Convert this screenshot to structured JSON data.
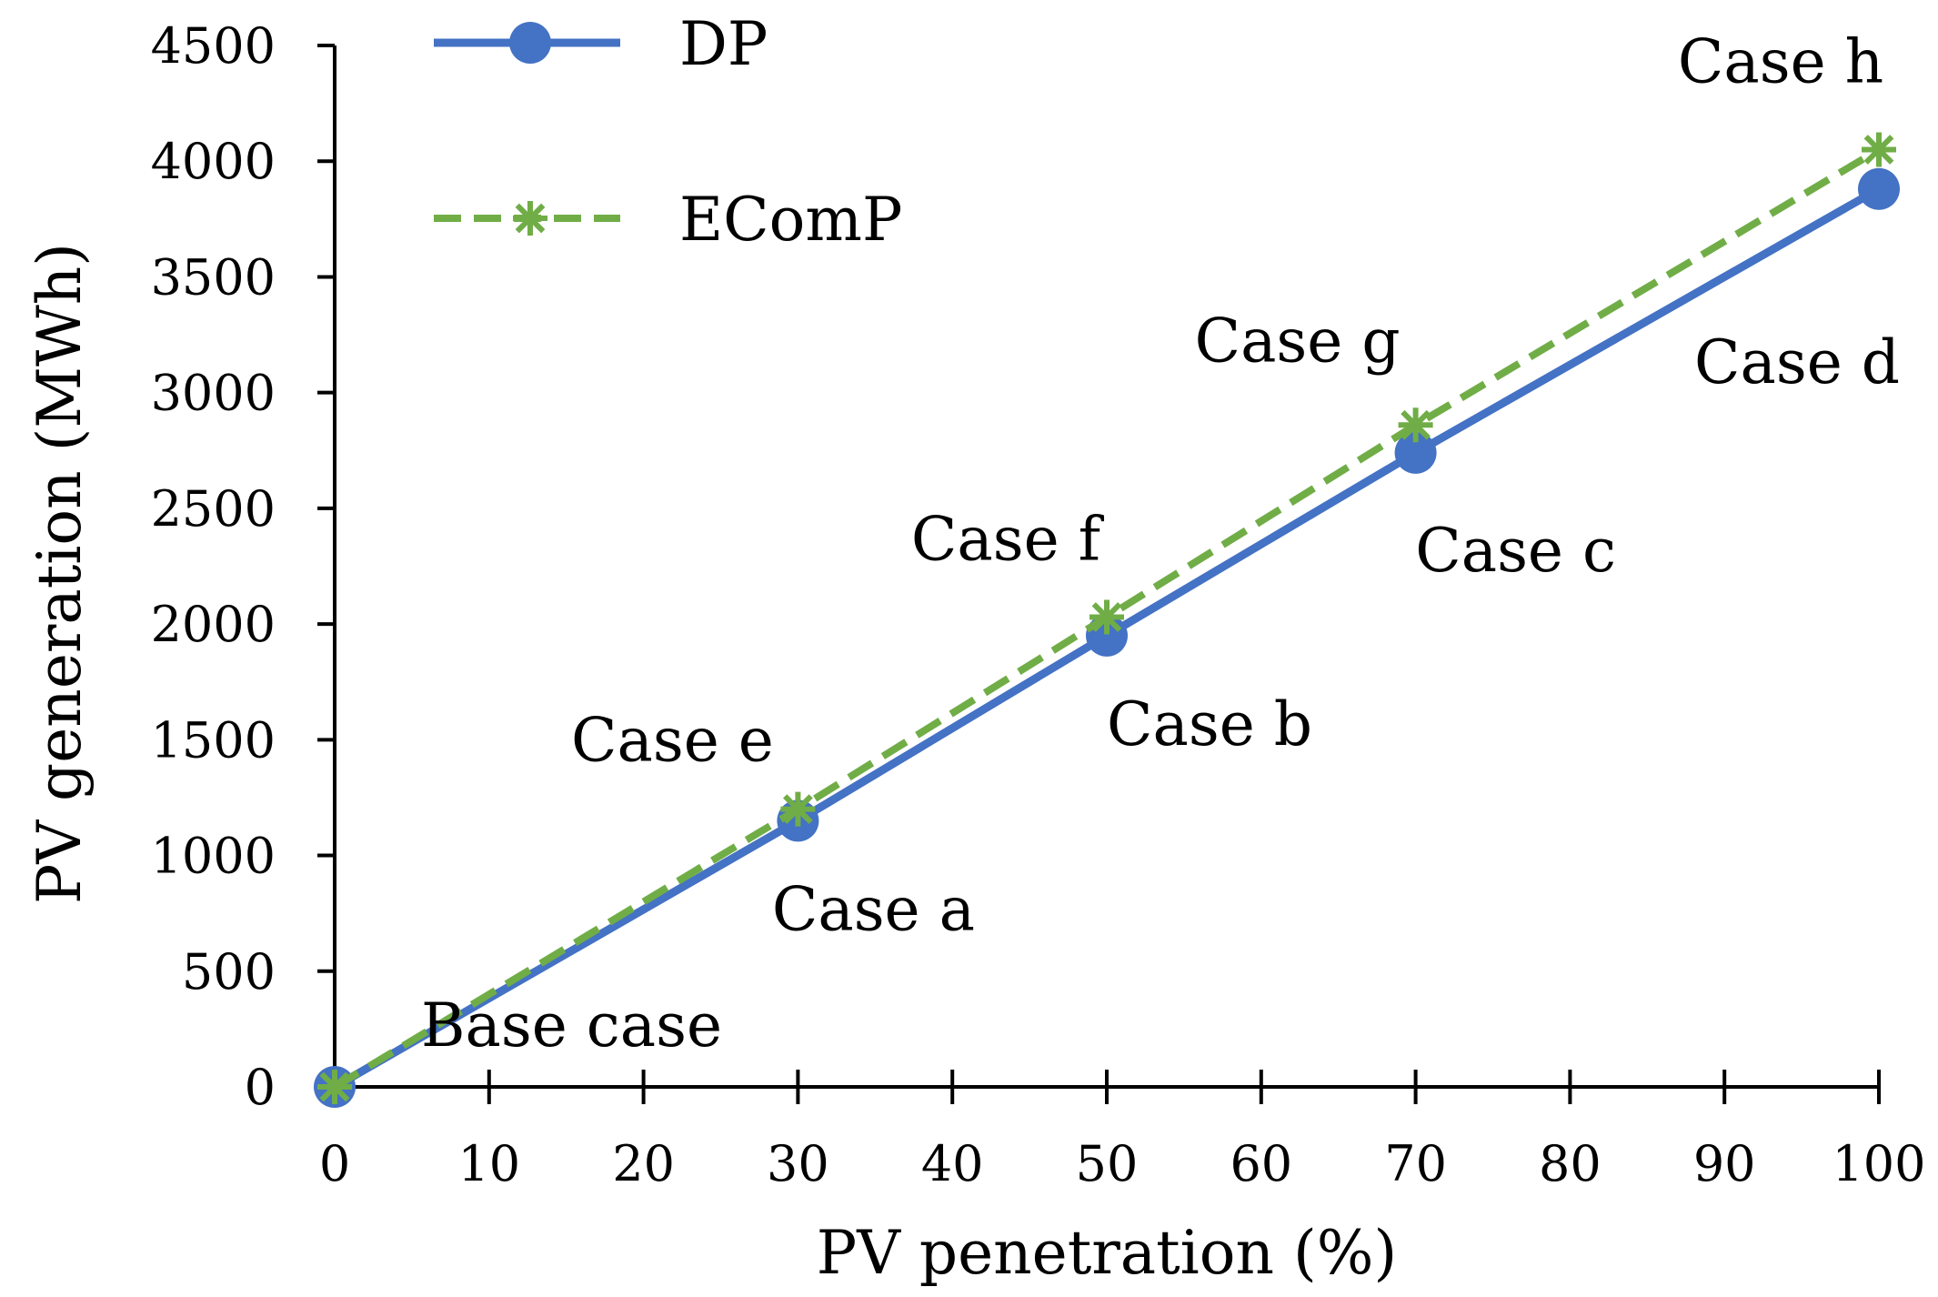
{
  "chart_data": {
    "type": "line",
    "title": "",
    "xlabel": "PV penetration (%)",
    "ylabel": "PV generation (MWh)",
    "xlim": [
      0,
      100
    ],
    "ylim": [
      0,
      4500
    ],
    "x_ticks": [
      "0",
      "10",
      "20",
      "30",
      "40",
      "50",
      "60",
      "70",
      "80",
      "90",
      "100"
    ],
    "y_ticks": [
      "0",
      "500",
      "1000",
      "1500",
      "2000",
      "2500",
      "3000",
      "3500",
      "4000",
      "4500"
    ],
    "grid": false,
    "legend_position": "top-left",
    "series": [
      {
        "name": "DP",
        "color": "#4472C4",
        "marker": "circle",
        "line": "solid",
        "points": [
          {
            "x": 0,
            "y": 0,
            "label": "Base case"
          },
          {
            "x": 30,
            "y": 1150,
            "label": "Case a"
          },
          {
            "x": 50,
            "y": 1950,
            "label": "Case b"
          },
          {
            "x": 70,
            "y": 2740,
            "label": "Case c"
          },
          {
            "x": 100,
            "y": 3880,
            "label": "Case d"
          }
        ]
      },
      {
        "name": "EComP",
        "color": "#70AD47",
        "marker": "asterisk",
        "line": "dashed",
        "points": [
          {
            "x": 0,
            "y": 0
          },
          {
            "x": 30,
            "y": 1200,
            "label": "Case e"
          },
          {
            "x": 50,
            "y": 2030,
            "label": "Case f"
          },
          {
            "x": 70,
            "y": 2860,
            "label": "Case g"
          },
          {
            "x": 100,
            "y": 4050,
            "label": "Case h"
          }
        ]
      }
    ]
  }
}
